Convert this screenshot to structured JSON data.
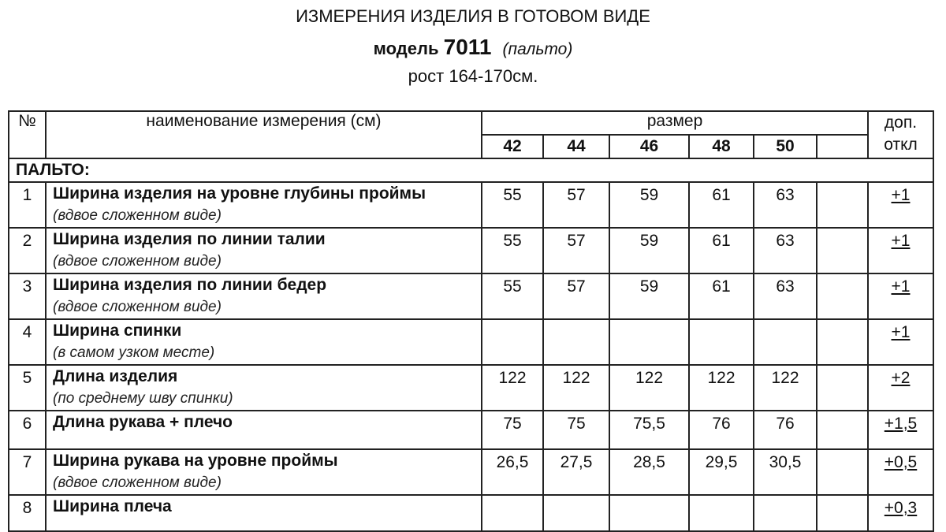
{
  "header": {
    "title": "ИЗМЕРЕНИЯ ИЗДЕЛИЯ В ГОТОВОМ ВИДЕ",
    "model_label": "модель",
    "model_number": "7011",
    "model_type": "(пальто)",
    "height": "рост 164-170см."
  },
  "table": {
    "col_no": "№",
    "col_name": "наименование измерения (см)",
    "col_size": "размер",
    "col_tol_1": "доп.",
    "col_tol_2": "откл",
    "sizes": [
      "42",
      "44",
      "46",
      "48",
      "50",
      ""
    ],
    "section": "ПАЛЬТО:",
    "rows": [
      {
        "no": "1",
        "name": "Ширина изделия на уровне глубины проймы",
        "note": "(вдвое сложенном виде)",
        "values": [
          "55",
          "57",
          "59",
          "61",
          "63",
          ""
        ],
        "tol": "+1"
      },
      {
        "no": "2",
        "name": "Ширина изделия по линии талии",
        "note": "(вдвое сложенном виде)",
        "values": [
          "55",
          "57",
          "59",
          "61",
          "63",
          ""
        ],
        "tol": "+1"
      },
      {
        "no": "3",
        "name": "Ширина изделия по линии бедер",
        "note": "(вдвое сложенном виде)",
        "values": [
          "55",
          "57",
          "59",
          "61",
          "63",
          ""
        ],
        "tol": "+1"
      },
      {
        "no": "4",
        "name": "Ширина спинки",
        "note": " (в самом узком месте)",
        "values": [
          "",
          "",
          "",
          "",
          "",
          ""
        ],
        "tol": "+1"
      },
      {
        "no": "5",
        "name": "Длина изделия",
        "note": " (по среднему шву спинки)",
        "values": [
          "122",
          "122",
          "122",
          "122",
          "122",
          ""
        ],
        "tol": "+2"
      },
      {
        "no": "6",
        "name": "Длина рукава + плечо",
        "note": "",
        "values": [
          "75",
          "75",
          "75,5",
          "76",
          "76",
          ""
        ],
        "tol": "+1,5"
      },
      {
        "no": "7",
        "name": "Ширина рукава на уровне проймы",
        "note": "(вдвое сложенном виде)",
        "values": [
          "26,5",
          "27,5",
          "28,5",
          "29,5",
          "30,5",
          ""
        ],
        "tol": "+0,5"
      },
      {
        "no": "8",
        "name": "Ширина плеча",
        "note": "",
        "values": [
          "",
          "",
          "",
          "",
          "",
          ""
        ],
        "tol": "+0,3"
      }
    ]
  }
}
